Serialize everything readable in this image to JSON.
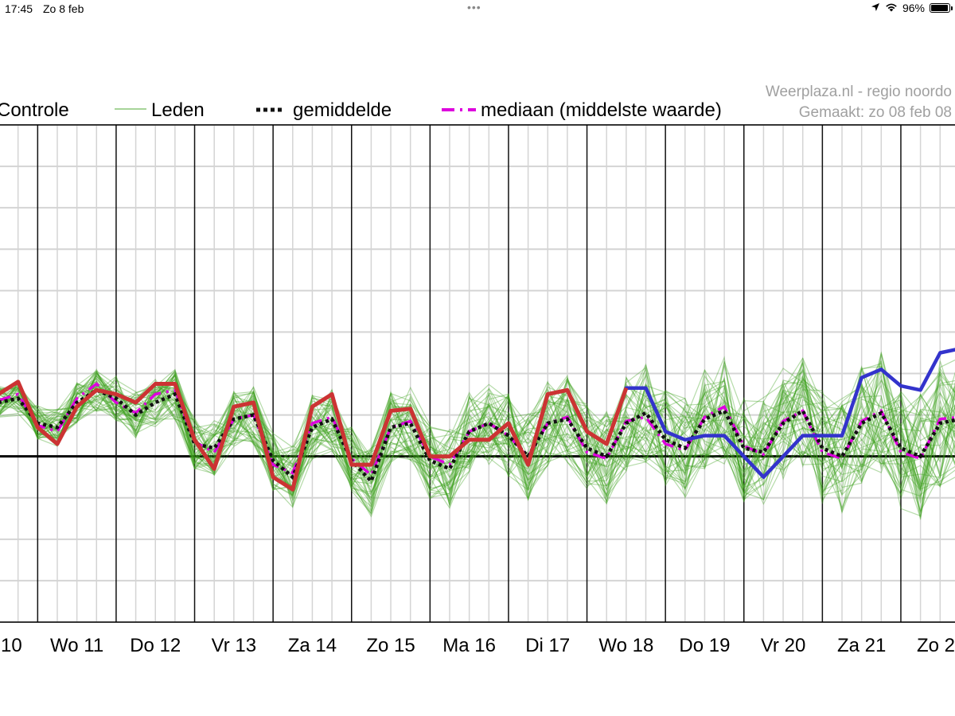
{
  "status_bar": {
    "time": "17:45",
    "date": "Zo 8 feb",
    "battery": "96%",
    "battery_level": 0.96,
    "icons": [
      "location-icon",
      "wifi-icon",
      "battery-icon"
    ]
  },
  "credit": {
    "line1": "Weerplaza.nl - regio noordo",
    "line2": "Gemaakt: zo 08 feb 08"
  },
  "chart_data": {
    "type": "line",
    "title": "",
    "xlabel": "",
    "ylabel": "",
    "x_ticks": [
      "10",
      "Wo 11",
      "Do 12",
      "Vr 13",
      "Za 14",
      "Zo 15",
      "Ma 16",
      "Di 17",
      "Wo 18",
      "Do 19",
      "Vr 20",
      "Za 21",
      "Zo 2"
    ],
    "x_range_days": [
      9.52,
      21.69
    ],
    "y_range": [
      -4,
      8
    ],
    "y_gridlines": [
      -4,
      -3,
      -2,
      -1,
      0,
      1,
      2,
      3,
      4,
      5,
      6,
      7,
      8
    ],
    "zero_line": 0,
    "legend_position": "top",
    "colors": {
      "controle": "#cc3333",
      "controle_extension": "#3333cc",
      "leden": "#3da01e",
      "gemiddelde": "#111111",
      "mediaan": "#dd00dd"
    },
    "legend": [
      {
        "key": "controle",
        "label": "Controle",
        "style": "solid-red"
      },
      {
        "key": "leden",
        "label": "Leden",
        "style": "thin-green"
      },
      {
        "key": "gemiddelde",
        "label": "gemiddelde",
        "style": "dotted-black"
      },
      {
        "key": "mediaan",
        "label": "mediaan (middelste waarde)",
        "style": "dashed-magenta"
      }
    ],
    "series": [
      {
        "name": "Controle",
        "x": [
          9.5,
          9.75,
          10.0,
          10.25,
          10.5,
          10.75,
          11.0,
          11.25,
          11.5,
          11.75,
          12.0,
          12.25,
          12.5,
          12.75,
          13.0,
          13.25,
          13.5,
          13.75,
          14.0,
          14.25,
          14.5,
          14.75,
          15.0,
          15.25,
          15.5,
          15.75,
          16.0,
          16.25,
          16.5,
          16.75,
          17.0,
          17.25,
          17.5,
          17.75,
          18.0,
          18.25,
          18.5,
          18.75,
          19.0,
          19.25,
          19.5,
          19.75,
          20.0,
          20.25,
          20.5,
          20.75,
          21.0,
          21.25,
          21.5,
          21.75
        ],
        "y": [
          1.5,
          1.8,
          0.7,
          0.3,
          1.2,
          1.6,
          1.5,
          1.3,
          1.75,
          1.75,
          0.4,
          -0.3,
          1.2,
          1.3,
          -0.5,
          -0.8,
          1.2,
          1.5,
          -0.2,
          -0.2,
          1.1,
          1.15,
          0.0,
          0.0,
          0.4,
          0.4,
          0.8,
          -0.2,
          1.5,
          1.6,
          0.6,
          0.3,
          1.65,
          1.65,
          0.6,
          0.4,
          0.5,
          0.5,
          0.0,
          -0.5,
          0.0,
          0.5,
          0.5,
          0.5,
          1.9,
          2.1,
          1.7,
          1.6,
          2.5,
          2.6
        ],
        "color": "#cc3333",
        "split_day": 17.5
      },
      {
        "name": "gemiddelde",
        "x": [
          9.5,
          9.75,
          10.0,
          10.25,
          10.5,
          10.75,
          11.0,
          11.25,
          11.5,
          11.75,
          12.0,
          12.25,
          12.5,
          12.75,
          13.0,
          13.25,
          13.5,
          13.75,
          14.0,
          14.25,
          14.5,
          14.75,
          15.0,
          15.25,
          15.5,
          15.75,
          16.0,
          16.25,
          16.5,
          16.75,
          17.0,
          17.25,
          17.5,
          17.75,
          18.0,
          18.25,
          18.5,
          18.75,
          19.0,
          19.25,
          19.5,
          19.75,
          20.0,
          20.25,
          20.5,
          20.75,
          21.0,
          21.25,
          21.5,
          21.75
        ],
        "y": [
          1.3,
          1.4,
          0.8,
          0.7,
          1.3,
          1.6,
          1.4,
          1.0,
          1.3,
          1.5,
          0.3,
          0.2,
          0.9,
          1.0,
          -0.1,
          -0.5,
          0.7,
          0.9,
          -0.1,
          -0.6,
          0.7,
          0.8,
          -0.1,
          -0.3,
          0.6,
          0.8,
          0.5,
          0.0,
          0.8,
          0.9,
          0.2,
          0.0,
          0.8,
          1.05,
          0.4,
          0.2,
          0.9,
          1.1,
          0.2,
          0.1,
          0.8,
          1.1,
          0.2,
          0.0,
          0.8,
          1.05,
          0.2,
          0.0,
          0.8,
          0.9
        ],
        "color": "#111111"
      },
      {
        "name": "mediaan (middelste waarde)",
        "x": [
          9.5,
          9.75,
          10.0,
          10.25,
          10.5,
          10.75,
          11.0,
          11.25,
          11.5,
          11.75,
          12.0,
          12.25,
          12.5,
          12.75,
          13.0,
          13.25,
          13.5,
          13.75,
          14.0,
          14.25,
          14.5,
          14.75,
          15.0,
          15.25,
          15.5,
          15.75,
          16.0,
          16.25,
          16.5,
          16.75,
          17.0,
          17.25,
          17.5,
          17.75,
          18.0,
          18.25,
          18.5,
          18.75,
          19.0,
          19.25,
          19.5,
          19.75,
          20.0,
          20.25,
          20.5,
          20.75,
          21.0,
          21.25,
          21.5,
          21.75
        ],
        "y": [
          1.35,
          1.5,
          0.75,
          0.6,
          1.4,
          1.75,
          1.3,
          1.05,
          1.5,
          1.6,
          0.35,
          0.1,
          0.9,
          1.0,
          -0.2,
          -0.4,
          0.8,
          0.95,
          -0.05,
          -0.45,
          0.7,
          0.85,
          0.0,
          -0.2,
          0.6,
          0.8,
          0.5,
          0.0,
          0.8,
          0.95,
          0.1,
          -0.05,
          0.85,
          0.95,
          0.3,
          0.15,
          0.95,
          1.2,
          0.25,
          0.05,
          0.85,
          1.1,
          0.1,
          -0.05,
          0.85,
          1.1,
          0.1,
          -0.05,
          0.9,
          0.95
        ],
        "color": "#dd00dd"
      }
    ],
    "leden_members": 50
  }
}
